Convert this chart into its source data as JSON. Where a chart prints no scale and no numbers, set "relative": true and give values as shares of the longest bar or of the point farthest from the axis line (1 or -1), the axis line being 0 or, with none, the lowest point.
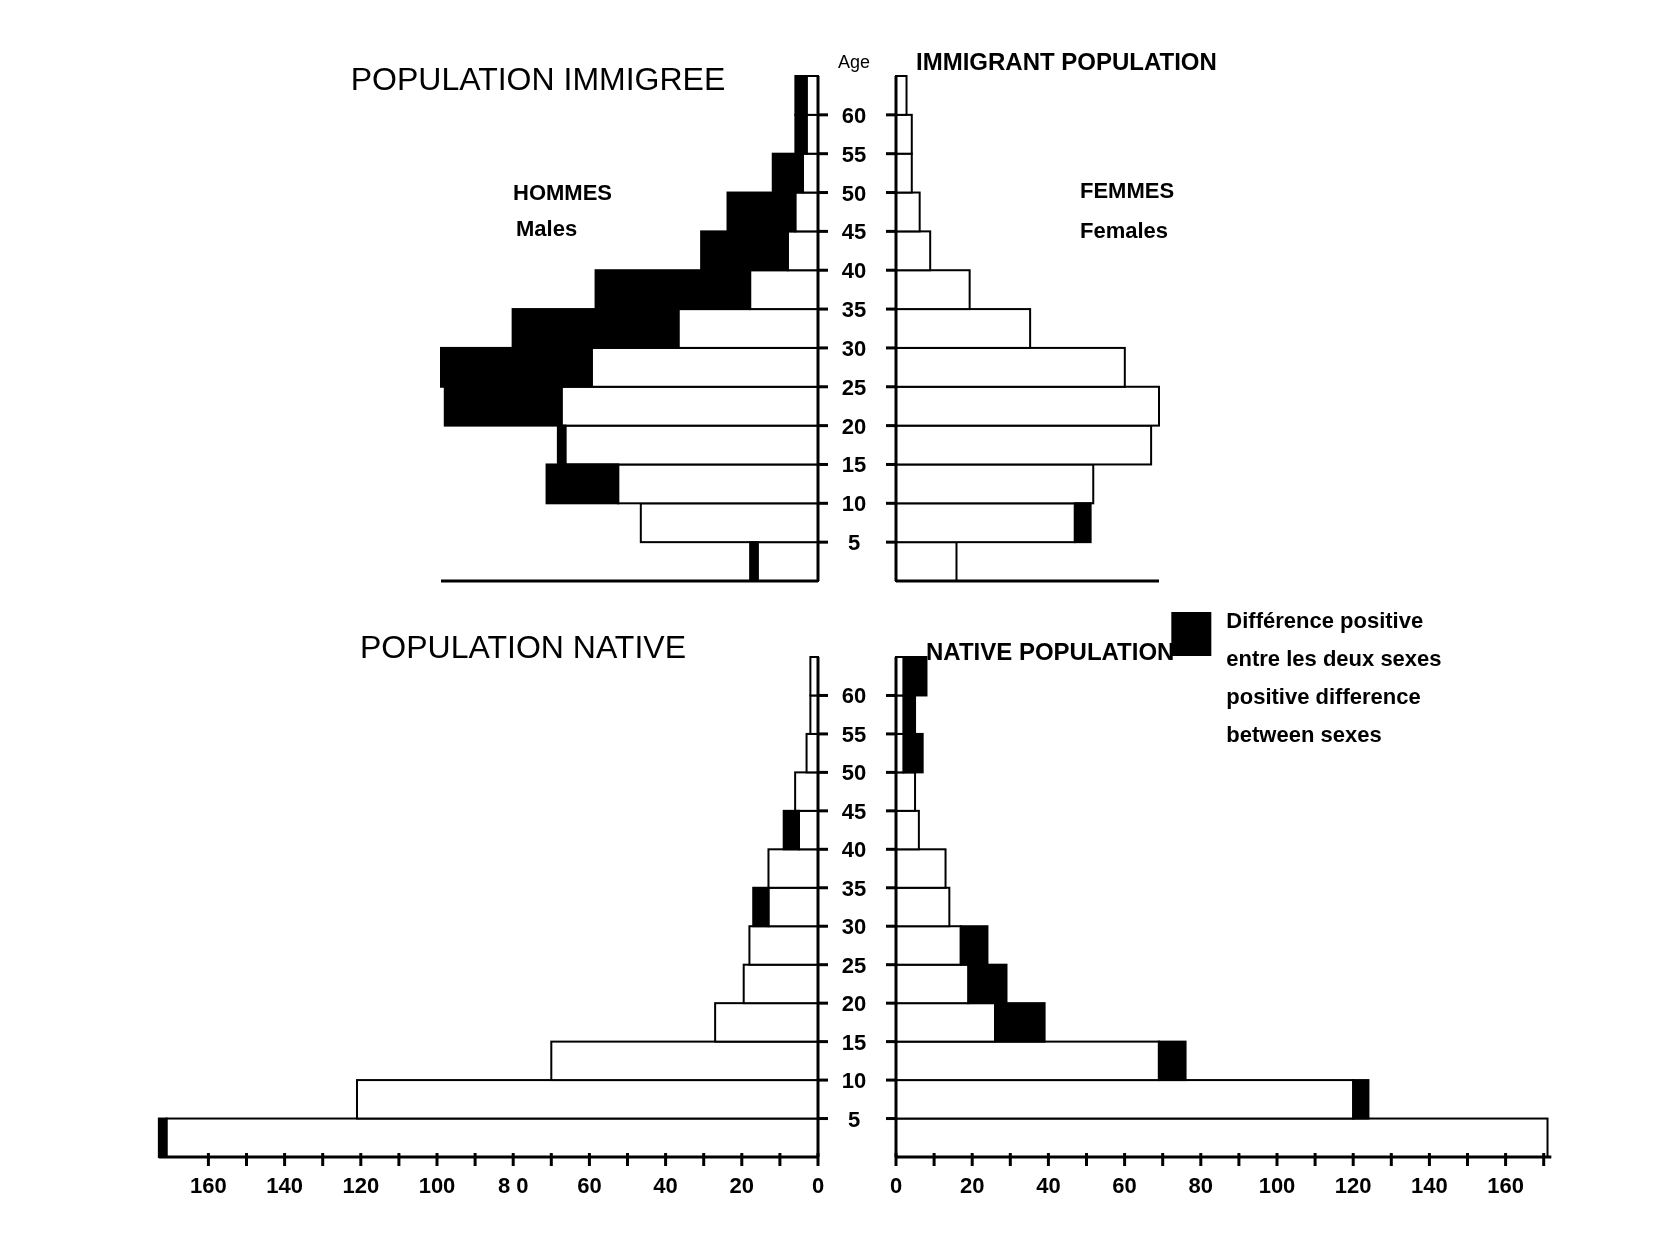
{
  "chart_data": [
    {
      "type": "bar",
      "orientation": "horizontal",
      "stacked": true,
      "relative": true,
      "title": "POPULATION IMMIGREE",
      "ylabel": "Age",
      "annotations": [
        "HOMMES",
        "Males"
      ],
      "tick_labels": "y",
      "x": [
        2.5,
        7.5,
        12.5,
        17.5,
        22.5,
        27.5,
        32.5,
        37.5,
        42.5,
        47.5,
        52.5,
        57.5,
        62.5
      ],
      "ylim": [
        0,
        65
      ],
      "yticks": [
        5,
        10,
        15,
        20,
        25,
        30,
        35,
        40,
        45,
        50,
        55,
        60
      ],
      "series": [
        {
          "color": "#ffffff",
          "values": [
            0.16,
            0.47,
            0.53,
            0.67,
            0.68,
            0.6,
            0.37,
            0.18,
            0.08,
            0.06,
            0.04,
            0.03,
            0.03
          ]
        },
        {
          "color": "#000000",
          "values": [
            0.02,
            null,
            0.19,
            0.02,
            0.31,
            0.4,
            0.44,
            0.41,
            0.23,
            0.18,
            0.08,
            0.03,
            0.03
          ]
        }
      ]
    },
    {
      "type": "bar",
      "orientation": "horizontal",
      "stacked": true,
      "relative": true,
      "title": "IMMIGRANT POPULATION",
      "annotations": [
        "FEMMES",
        "Females"
      ],
      "tick_labels": false,
      "x": [
        2.5,
        7.5,
        12.5,
        17.5,
        22.5,
        27.5,
        32.5,
        37.5,
        42.5,
        47.5,
        52.5,
        57.5,
        62.5
      ],
      "ylim": [
        0,
        65
      ],
      "yticks": [
        5,
        10,
        15,
        20,
        25,
        30,
        35,
        40,
        45,
        50,
        55,
        60
      ],
      "series": [
        {
          "color": "#ffffff",
          "values": [
            0.23,
            0.68,
            0.75,
            0.97,
            1,
            0.87,
            0.51,
            0.28,
            0.13,
            0.09,
            0.06,
            0.06,
            0.04
          ]
        },
        {
          "color": "#000000",
          "values": [
            null,
            0.06,
            null,
            null,
            null,
            null,
            null,
            null,
            null,
            null,
            null,
            null,
            null
          ]
        }
      ]
    },
    {
      "type": "bar",
      "orientation": "horizontal",
      "stacked": true,
      "title": "POPULATION NATIVE",
      "x": [
        2.5,
        7.5,
        12.5,
        17.5,
        22.5,
        27.5,
        32.5,
        37.5,
        42.5,
        47.5,
        52.5,
        57.5,
        62.5
      ],
      "ylim": [
        0,
        65
      ],
      "yticks": [
        5,
        10,
        15,
        20,
        25,
        30,
        35,
        40,
        45,
        50,
        55,
        60
      ],
      "xlim": [
        173,
        0
      ],
      "xticks": [
        0,
        {
          "value": 10,
          "label": null
        },
        20,
        {
          "value": 30,
          "label": null
        },
        40,
        {
          "value": 50,
          "label": null
        },
        60,
        {
          "value": 70,
          "label": null
        },
        {
          "value": 80,
          "label": "8 0"
        },
        {
          "value": 90,
          "label": null
        },
        100,
        {
          "value": 110,
          "label": null
        },
        120,
        {
          "value": 130,
          "label": null
        },
        140,
        {
          "value": 150,
          "label": null
        },
        160
      ],
      "series": [
        {
          "color": "#ffffff",
          "values": [
            171,
            121,
            70,
            27,
            19.5,
            18,
            13,
            13,
            5,
            6,
            3,
            2,
            2
          ]
        },
        {
          "color": "#000000",
          "values": [
            2,
            null,
            null,
            null,
            null,
            null,
            4,
            null,
            4,
            null,
            null,
            null,
            null
          ]
        }
      ]
    },
    {
      "type": "bar",
      "orientation": "horizontal",
      "stacked": true,
      "title": "NATIVE POPULATION",
      "tick_labels": "x",
      "legend": "top right",
      "x": [
        2.5,
        7.5,
        12.5,
        17.5,
        22.5,
        27.5,
        32.5,
        37.5,
        42.5,
        47.5,
        52.5,
        57.5,
        62.5
      ],
      "ylim": [
        0,
        65
      ],
      "yticks": [
        5,
        10,
        15,
        20,
        25,
        30,
        35,
        40,
        45,
        50,
        55,
        60
      ],
      "xlim": [
        0,
        172
      ],
      "xticks": [
        0,
        {
          "value": 10,
          "label": null
        },
        20,
        {
          "value": 30,
          "label": null
        },
        40,
        {
          "value": 50,
          "label": null
        },
        60,
        {
          "value": 70,
          "label": null
        },
        80,
        {
          "value": 90,
          "label": null
        },
        100,
        {
          "value": 110,
          "label": null
        },
        120,
        {
          "value": 130,
          "label": null
        },
        140,
        {
          "value": 150,
          "label": null
        },
        160,
        {
          "value": 170,
          "label": null
        }
      ],
      "series": [
        {
          "color": "#ffffff",
          "values": [
            171,
            120,
            69,
            26,
            19,
            17,
            14,
            13,
            6,
            5,
            2,
            2,
            2
          ]
        },
        {
          "name": "Différence positive entre les deux sexes positive difference between sexes",
          "color": "#000000",
          "values": [
            null,
            4,
            7,
            13,
            10,
            7,
            null,
            null,
            null,
            null,
            5,
            3,
            6
          ]
        }
      ]
    }
  ]
}
